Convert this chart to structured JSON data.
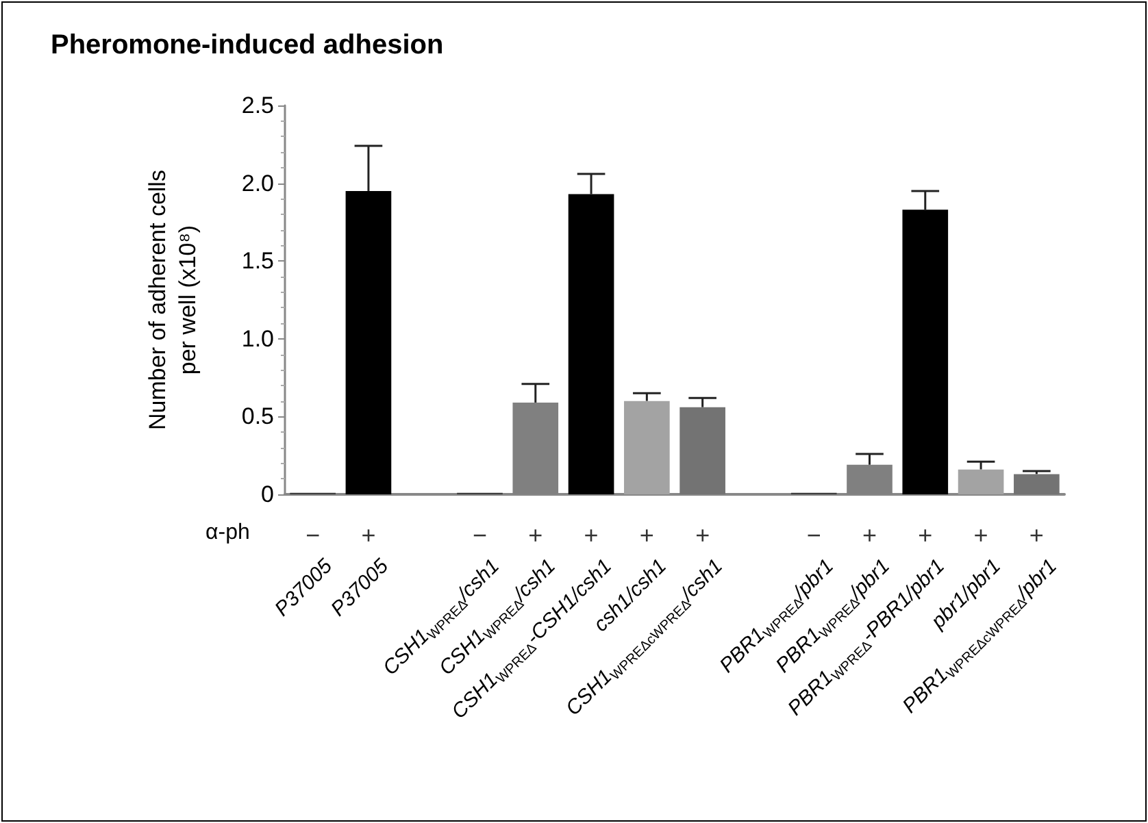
{
  "chart_data": {
    "type": "bar",
    "title": "Pheromone-induced adhesion",
    "ylabel": "Number of adherent cells\nper well (x10⁸)",
    "categories": [
      "P37005",
      "P37005",
      null,
      "CSH1$_{WPREΔ}$/csh1",
      "CSH1$_{WPREΔ}$/csh1",
      "CSH1$_{WPREΔ}$-CSH1/csh1",
      "csh1/csh1",
      "CSH1$_{WPREΔcWPREΔ}$/csh1",
      null,
      "PBR1$_{WPREΔ}$/pbr1",
      "PBR1$_{WPREΔ}$/pbr1",
      "PBR1$_{WPREΔ}$-PBR1/pbr1",
      "pbr1/pbr1",
      "PBR1$_{WPREΔcWPREΔ}$/pbr1"
    ],
    "values": [
      0.01,
      1.95,
      null,
      0.01,
      0.59,
      1.93,
      0.6,
      0.56,
      null,
      0.01,
      0.19,
      1.83,
      0.16,
      0.13
    ],
    "errors": [
      null,
      [
        1.95,
        2.24
      ],
      null,
      null,
      [
        0.59,
        0.71
      ],
      [
        1.93,
        2.06
      ],
      [
        0.6,
        0.65
      ],
      [
        0.56,
        0.62
      ],
      null,
      null,
      [
        0.19,
        0.26
      ],
      [
        1.83,
        1.95
      ],
      [
        0.16,
        0.21
      ],
      [
        0.13,
        0.15
      ]
    ],
    "colors": [
      "#3c3c3c",
      "#000000",
      null,
      "#3c3c3c",
      "#808080",
      "#000000",
      "#a3a3a3",
      "#737373",
      null,
      "#3c3c3c",
      "#808080",
      "#000000",
      "#a3a3a3",
      "#737373"
    ],
    "annotations": [
      "α-ph",
      "−",
      "+",
      "−",
      "+",
      "+",
      "+",
      "+",
      "−",
      "+",
      "+",
      "+",
      "+"
    ],
    "ylim": [
      0,
      2.5
    ],
    "yticks": [
      0,
      0.5,
      {
        "value": 1,
        "label": "1.0"
      },
      1.5,
      {
        "value": 2,
        "label": "2.0"
      },
      2.5
    ],
    "grid": false
  }
}
